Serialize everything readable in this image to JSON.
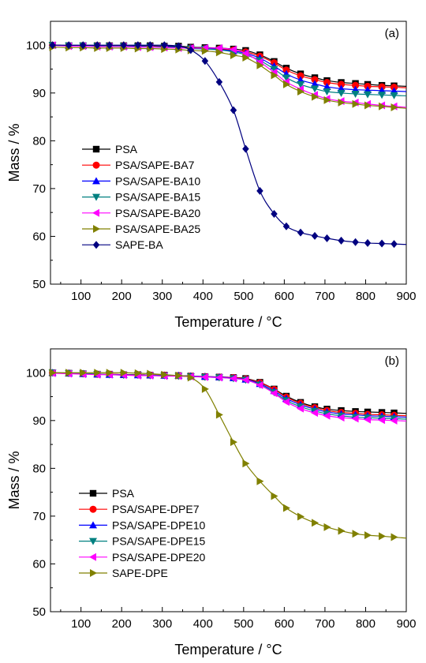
{
  "chart_data": [
    {
      "type": "line",
      "panel_tag": "(a)",
      "xlabel": "Temperature / °C",
      "ylabel": "Mass / %",
      "xlim": [
        25,
        900
      ],
      "ylim": [
        50,
        105
      ],
      "xticks": [
        100,
        200,
        300,
        400,
        500,
        600,
        700,
        800,
        900
      ],
      "yticks": [
        50,
        60,
        70,
        80,
        90,
        100
      ],
      "grid": false,
      "legend_position": "center-left",
      "x": [
        30,
        70,
        105,
        140,
        170,
        205,
        240,
        270,
        305,
        340,
        370,
        405,
        440,
        475,
        505,
        540,
        575,
        605,
        640,
        675,
        705,
        740,
        775,
        805,
        840,
        870
      ],
      "series": [
        {
          "name": "PSA",
          "color": "#000000",
          "marker": "square",
          "values": [
            100.0,
            99.9,
            99.9,
            99.9,
            99.9,
            99.9,
            99.9,
            99.9,
            99.8,
            99.8,
            99.6,
            99.5,
            99.4,
            99.2,
            98.9,
            98.0,
            96.6,
            95.2,
            94.0,
            93.2,
            92.6,
            92.2,
            92.0,
            91.8,
            91.6,
            91.5
          ]
        },
        {
          "name": "PSA/SAPE-BA7",
          "color": "#ff0000",
          "marker": "circle",
          "values": [
            100.0,
            99.9,
            99.9,
            99.9,
            99.9,
            99.9,
            99.8,
            99.8,
            99.7,
            99.6,
            99.4,
            99.3,
            99.2,
            99.0,
            98.6,
            97.7,
            96.3,
            94.8,
            93.6,
            92.8,
            92.2,
            91.8,
            91.6,
            91.4,
            91.3,
            91.2
          ]
        },
        {
          "name": "PSA/SAPE-BA10",
          "color": "#0000ff",
          "marker": "triangle-up",
          "values": [
            100.0,
            99.9,
            99.9,
            99.9,
            99.8,
            99.8,
            99.8,
            99.7,
            99.7,
            99.6,
            99.4,
            99.3,
            99.1,
            98.8,
            98.3,
            97.3,
            95.6,
            94.0,
            92.7,
            91.9,
            91.3,
            90.9,
            90.7,
            90.6,
            90.5,
            90.4
          ]
        },
        {
          "name": "PSA/SAPE-BA15",
          "color": "#008080",
          "marker": "triangle-down",
          "values": [
            100.0,
            99.9,
            99.9,
            99.8,
            99.8,
            99.8,
            99.7,
            99.7,
            99.6,
            99.5,
            99.3,
            99.2,
            99.0,
            98.6,
            98.0,
            96.8,
            95.0,
            93.2,
            91.8,
            90.9,
            90.3,
            90.0,
            89.8,
            89.7,
            89.6,
            89.5
          ]
        },
        {
          "name": "PSA/SAPE-BA20",
          "color": "#ff00ff",
          "marker": "triangle-left",
          "values": [
            100.0,
            99.8,
            99.8,
            99.7,
            99.7,
            99.7,
            99.6,
            99.6,
            99.5,
            99.4,
            99.4,
            99.4,
            99.4,
            99.1,
            98.3,
            96.5,
            94.3,
            92.3,
            90.8,
            89.6,
            88.8,
            88.3,
            88.0,
            87.7,
            87.4,
            87.2
          ]
        },
        {
          "name": "PSA/SAPE-BA25",
          "color": "#808000",
          "marker": "triangle-right",
          "values": [
            99.6,
            99.5,
            99.5,
            99.4,
            99.4,
            99.4,
            99.3,
            99.3,
            99.2,
            99.1,
            98.9,
            98.8,
            98.5,
            97.9,
            97.4,
            95.8,
            93.7,
            91.8,
            90.3,
            89.2,
            88.5,
            88.0,
            87.7,
            87.4,
            87.2,
            87.0
          ]
        },
        {
          "name": "SAPE-BA",
          "color": "#000080",
          "marker": "diamond",
          "values": [
            100.0,
            100.0,
            100.0,
            100.0,
            100.0,
            100.0,
            100.0,
            100.0,
            100.0,
            99.8,
            99.0,
            96.7,
            92.3,
            86.4,
            78.3,
            69.5,
            64.7,
            62.1,
            60.8,
            60.1,
            59.6,
            59.1,
            58.8,
            58.6,
            58.5,
            58.4
          ]
        }
      ]
    },
    {
      "type": "line",
      "panel_tag": "(b)",
      "xlabel": "Temperature / °C",
      "ylabel": "Mass / %",
      "xlim": [
        25,
        900
      ],
      "ylim": [
        50,
        105
      ],
      "xticks": [
        100,
        200,
        300,
        400,
        500,
        600,
        700,
        800,
        900
      ],
      "yticks": [
        50,
        60,
        70,
        80,
        90,
        100
      ],
      "grid": false,
      "legend_position": "center-left",
      "x": [
        30,
        70,
        105,
        140,
        170,
        205,
        240,
        270,
        305,
        340,
        370,
        405,
        440,
        475,
        505,
        540,
        575,
        605,
        640,
        675,
        705,
        740,
        775,
        805,
        840,
        870
      ],
      "series": [
        {
          "name": "PSA",
          "color": "#000000",
          "marker": "square",
          "values": [
            100.0,
            99.9,
            99.8,
            99.7,
            99.7,
            99.6,
            99.6,
            99.5,
            99.5,
            99.4,
            99.3,
            99.2,
            99.1,
            99.0,
            98.8,
            98.0,
            96.6,
            95.1,
            93.8,
            92.9,
            92.4,
            92.1,
            91.9,
            91.8,
            91.7,
            91.6
          ]
        },
        {
          "name": "PSA/SAPE-DPE7",
          "color": "#ff0000",
          "marker": "circle",
          "values": [
            100.0,
            99.9,
            99.8,
            99.7,
            99.7,
            99.6,
            99.6,
            99.5,
            99.5,
            99.4,
            99.3,
            99.2,
            99.1,
            99.0,
            98.7,
            97.9,
            96.5,
            94.9,
            93.6,
            92.7,
            92.1,
            91.7,
            91.5,
            91.3,
            91.2,
            91.1
          ]
        },
        {
          "name": "PSA/SAPE-DPE10",
          "color": "#0000ff",
          "marker": "triangle-up",
          "values": [
            100.0,
            99.9,
            99.8,
            99.7,
            99.6,
            99.6,
            99.5,
            99.5,
            99.4,
            99.4,
            99.3,
            99.2,
            99.1,
            98.9,
            98.6,
            97.7,
            96.2,
            94.6,
            93.3,
            92.4,
            91.8,
            91.4,
            91.2,
            91.0,
            90.9,
            90.8
          ]
        },
        {
          "name": "PSA/SAPE-DPE15",
          "color": "#008080",
          "marker": "triangle-down",
          "values": [
            100.0,
            99.9,
            99.8,
            99.7,
            99.6,
            99.5,
            99.5,
            99.4,
            99.4,
            99.3,
            99.2,
            99.1,
            99.0,
            98.8,
            98.5,
            97.5,
            95.9,
            94.2,
            92.9,
            92.0,
            91.4,
            91.0,
            90.7,
            90.6,
            90.5,
            90.4
          ]
        },
        {
          "name": "PSA/SAPE-DPE20",
          "color": "#ff00ff",
          "marker": "triangle-left",
          "values": [
            99.9,
            99.8,
            99.7,
            99.6,
            99.6,
            99.5,
            99.4,
            99.4,
            99.3,
            99.3,
            99.2,
            99.1,
            99.0,
            98.8,
            98.5,
            97.4,
            95.7,
            93.9,
            92.5,
            91.6,
            91.0,
            90.6,
            90.4,
            90.2,
            90.1,
            90.0
          ]
        },
        {
          "name": "SAPE-DPE",
          "color": "#808000",
          "marker": "triangle-right",
          "values": [
            100.0,
            100.0,
            100.0,
            100.0,
            100.0,
            100.0,
            99.9,
            99.8,
            99.6,
            99.4,
            99.0,
            96.6,
            91.2,
            85.5,
            81.0,
            77.3,
            74.2,
            71.7,
            69.9,
            68.6,
            67.7,
            66.9,
            66.3,
            66.0,
            65.8,
            65.6
          ]
        }
      ]
    }
  ]
}
